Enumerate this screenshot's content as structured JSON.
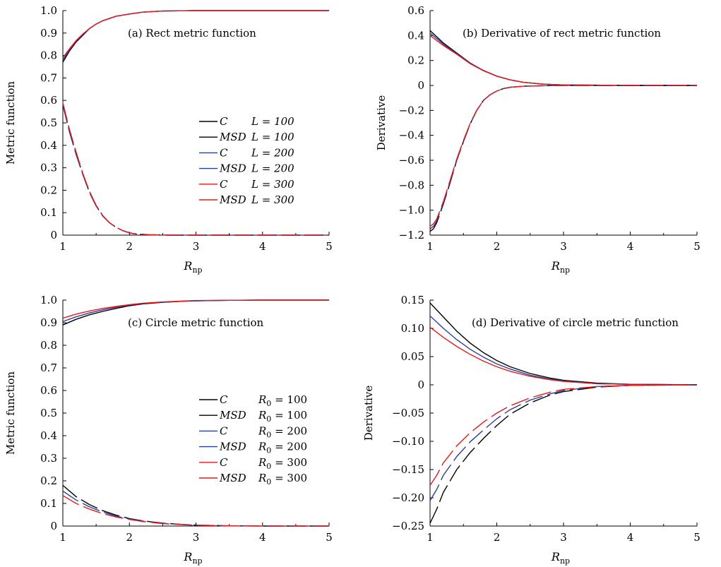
{
  "chart_data": [
    {
      "type": "line",
      "title": "(a) Rect metric function",
      "xlabel_main": "R",
      "xlabel_sub": "np",
      "ylabel": "Metric function",
      "xlim": [
        1,
        5
      ],
      "ylim": [
        0,
        1.0
      ],
      "xticks": [
        "1",
        "2",
        "3",
        "4",
        "5"
      ],
      "yticks": [
        "0",
        "0.1",
        "0.2",
        "0.3",
        "0.4",
        "0.5",
        "0.6",
        "0.7",
        "0.8",
        "0.9",
        "1.0"
      ],
      "grid": false,
      "legend_position": "center-right",
      "legend": [
        {
          "a": "C",
          "b": "L = 100",
          "color": "#000000"
        },
        {
          "a": "MSD",
          "b": "L = 100",
          "color": "#000000"
        },
        {
          "a": "C",
          "b": "L = 200",
          "color": "#2a3f9a"
        },
        {
          "a": "MSD",
          "b": "L = 200",
          "color": "#2a3f9a"
        },
        {
          "a": "C",
          "b": "L = 300",
          "color": "#e41a1c"
        },
        {
          "a": "MSD",
          "b": "L = 300",
          "color": "#e41a1c"
        }
      ],
      "series": [
        {
          "style": "solid",
          "color": "#000000",
          "x": [
            1,
            1.1,
            1.2,
            1.3,
            1.4,
            1.5,
            1.6,
            1.8,
            2,
            2.2,
            2.5,
            3,
            4,
            5
          ],
          "y": [
            0.77,
            0.82,
            0.86,
            0.89,
            0.92,
            0.94,
            0.955,
            0.975,
            0.985,
            0.993,
            0.998,
            1,
            1,
            1
          ]
        },
        {
          "style": "solid",
          "color": "#2a3f9a",
          "x": [
            1,
            1.1,
            1.2,
            1.3,
            1.4,
            1.5,
            1.6,
            1.8,
            2,
            2.2,
            2.5,
            3,
            4,
            5
          ],
          "y": [
            0.78,
            0.825,
            0.864,
            0.894,
            0.92,
            0.94,
            0.955,
            0.975,
            0.985,
            0.993,
            0.998,
            1,
            1,
            1
          ]
        },
        {
          "style": "solid",
          "color": "#e41a1c",
          "x": [
            1,
            1.1,
            1.2,
            1.3,
            1.4,
            1.5,
            1.6,
            1.8,
            2,
            2.2,
            2.5,
            3,
            4,
            5
          ],
          "y": [
            0.79,
            0.83,
            0.867,
            0.896,
            0.92,
            0.94,
            0.955,
            0.975,
            0.985,
            0.993,
            0.998,
            1,
            1,
            1
          ]
        },
        {
          "style": "dashed",
          "color": "#000000",
          "x": [
            1,
            1.1,
            1.2,
            1.3,
            1.4,
            1.5,
            1.6,
            1.7,
            1.8,
            1.9,
            2,
            2.1,
            2.3,
            2.6,
            3,
            4,
            5
          ],
          "y": [
            0.58,
            0.46,
            0.36,
            0.27,
            0.19,
            0.13,
            0.085,
            0.055,
            0.035,
            0.02,
            0.01,
            0.005,
            0.002,
            0,
            0,
            0,
            0
          ]
        },
        {
          "style": "dashed",
          "color": "#2a3f9a",
          "x": [
            1,
            1.1,
            1.2,
            1.3,
            1.4,
            1.5,
            1.6,
            1.7,
            1.8,
            1.9,
            2,
            2.1,
            2.3,
            2.6,
            3,
            4,
            5
          ],
          "y": [
            0.585,
            0.465,
            0.365,
            0.272,
            0.192,
            0.131,
            0.086,
            0.055,
            0.035,
            0.02,
            0.01,
            0.005,
            0.002,
            0,
            0,
            0,
            0
          ]
        },
        {
          "style": "dashed",
          "color": "#e41a1c",
          "x": [
            1,
            1.1,
            1.2,
            1.3,
            1.4,
            1.5,
            1.6,
            1.7,
            1.8,
            1.9,
            2,
            2.1,
            2.3,
            2.6,
            3,
            4,
            5
          ],
          "y": [
            0.59,
            0.47,
            0.37,
            0.275,
            0.195,
            0.133,
            0.087,
            0.056,
            0.035,
            0.02,
            0.01,
            0.005,
            0.002,
            0,
            0,
            0,
            0
          ]
        }
      ]
    },
    {
      "type": "line",
      "title": "(b) Derivative of rect metric function",
      "xlabel_main": "R",
      "xlabel_sub": "np",
      "ylabel": "Derivative",
      "xlim": [
        1,
        5
      ],
      "ylim": [
        -1.2,
        0.6
      ],
      "xticks": [
        "1",
        "2",
        "3",
        "4",
        "5"
      ],
      "yticks": [
        "−1.2",
        "−1.0",
        "−0.8",
        "−0.6",
        "−0.4",
        "−0.2",
        "0",
        "0.2",
        "0.4",
        "0.6"
      ],
      "grid": false,
      "series": [
        {
          "style": "solid",
          "color": "#000000",
          "x": [
            1,
            1.1,
            1.2,
            1.4,
            1.6,
            1.8,
            2,
            2.2,
            2.4,
            2.7,
            3,
            4,
            5
          ],
          "y": [
            0.44,
            0.39,
            0.34,
            0.26,
            0.18,
            0.12,
            0.075,
            0.045,
            0.025,
            0.01,
            0.004,
            0,
            0
          ]
        },
        {
          "style": "solid",
          "color": "#2a3f9a",
          "x": [
            1,
            1.1,
            1.2,
            1.4,
            1.6,
            1.8,
            2,
            2.2,
            2.4,
            2.7,
            3,
            4,
            5
          ],
          "y": [
            0.42,
            0.375,
            0.33,
            0.255,
            0.178,
            0.12,
            0.075,
            0.045,
            0.025,
            0.01,
            0.004,
            0,
            0
          ]
        },
        {
          "style": "solid",
          "color": "#e41a1c",
          "x": [
            1,
            1.1,
            1.2,
            1.4,
            1.6,
            1.8,
            2,
            2.2,
            2.4,
            2.7,
            3,
            4,
            5
          ],
          "y": [
            0.4,
            0.36,
            0.32,
            0.25,
            0.175,
            0.118,
            0.074,
            0.045,
            0.025,
            0.01,
            0.004,
            0,
            0
          ]
        },
        {
          "style": "dashed",
          "color": "#000000",
          "x": [
            1,
            1.05,
            1.1,
            1.2,
            1.3,
            1.4,
            1.5,
            1.6,
            1.7,
            1.8,
            1.9,
            2,
            2.1,
            2.2,
            2.4,
            2.7,
            3,
            4,
            5
          ],
          "y": [
            -1.17,
            -1.15,
            -1.1,
            -0.95,
            -0.78,
            -0.6,
            -0.45,
            -0.31,
            -0.2,
            -0.12,
            -0.075,
            -0.045,
            -0.025,
            -0.015,
            -0.006,
            -0.002,
            0,
            0,
            0
          ]
        },
        {
          "style": "dashed",
          "color": "#2a3f9a",
          "x": [
            1,
            1.05,
            1.1,
            1.2,
            1.3,
            1.4,
            1.5,
            1.6,
            1.7,
            1.8,
            1.9,
            2,
            2.1,
            2.2,
            2.4,
            2.7,
            3,
            4,
            5
          ],
          "y": [
            -1.15,
            -1.13,
            -1.085,
            -0.94,
            -0.77,
            -0.595,
            -0.445,
            -0.308,
            -0.2,
            -0.12,
            -0.075,
            -0.045,
            -0.025,
            -0.015,
            -0.006,
            -0.002,
            0,
            0,
            0
          ]
        },
        {
          "style": "dashed",
          "color": "#e41a1c",
          "x": [
            1,
            1.05,
            1.1,
            1.2,
            1.3,
            1.4,
            1.5,
            1.6,
            1.7,
            1.8,
            1.9,
            2,
            2.1,
            2.2,
            2.4,
            2.7,
            3,
            4,
            5
          ],
          "y": [
            -1.13,
            -1.11,
            -1.07,
            -0.93,
            -0.76,
            -0.59,
            -0.44,
            -0.305,
            -0.198,
            -0.12,
            -0.075,
            -0.045,
            -0.025,
            -0.015,
            -0.006,
            -0.002,
            0,
            0,
            0
          ]
        }
      ]
    },
    {
      "type": "line",
      "title": "(c) Circle metric function",
      "xlabel_main": "R",
      "xlabel_sub": "np",
      "ylabel": "Metric function",
      "xlim": [
        1,
        5
      ],
      "ylim": [
        0,
        1.0
      ],
      "xticks": [
        "1",
        "2",
        "3",
        "4",
        "5"
      ],
      "yticks": [
        "0",
        "0.1",
        "0.2",
        "0.3",
        "0.4",
        "0.5",
        "0.6",
        "0.7",
        "0.8",
        "0.9",
        "1.0"
      ],
      "grid": false,
      "legend_position": "center-right",
      "legend": [
        {
          "a": "C",
          "b": "R",
          "sub": "0",
          "c": " = 100",
          "color": "#000000"
        },
        {
          "a": "MSD",
          "b": "R",
          "sub": "0",
          "c": " = 100",
          "color": "#000000"
        },
        {
          "a": "C",
          "b": "R",
          "sub": "0",
          "c": " = 200",
          "color": "#2a3f9a"
        },
        {
          "a": "MSD",
          "b": "R",
          "sub": "0",
          "c": " = 200",
          "color": "#2a3f9a"
        },
        {
          "a": "C",
          "b": "R",
          "sub": "0",
          "c": " = 300",
          "color": "#e41a1c"
        },
        {
          "a": "MSD",
          "b": "R",
          "sub": "0",
          "c": " = 300",
          "color": "#e41a1c"
        }
      ],
      "series": [
        {
          "style": "solid",
          "color": "#000000",
          "x": [
            1,
            1.2,
            1.4,
            1.6,
            1.8,
            2,
            2.2,
            2.5,
            2.8,
            3,
            3.5,
            4,
            5
          ],
          "y": [
            0.89,
            0.915,
            0.935,
            0.95,
            0.963,
            0.975,
            0.983,
            0.99,
            0.995,
            0.997,
            0.999,
            1,
            1
          ]
        },
        {
          "style": "solid",
          "color": "#2a3f9a",
          "x": [
            1,
            1.2,
            1.4,
            1.6,
            1.8,
            2,
            2.2,
            2.5,
            2.8,
            3,
            3.5,
            4,
            5
          ],
          "y": [
            0.905,
            0.926,
            0.943,
            0.957,
            0.968,
            0.978,
            0.985,
            0.991,
            0.995,
            0.997,
            0.999,
            1,
            1
          ]
        },
        {
          "style": "solid",
          "color": "#e41a1c",
          "x": [
            1,
            1.2,
            1.4,
            1.6,
            1.8,
            2,
            2.2,
            2.5,
            2.8,
            3,
            3.5,
            4,
            5
          ],
          "y": [
            0.92,
            0.938,
            0.952,
            0.963,
            0.972,
            0.98,
            0.986,
            0.992,
            0.996,
            0.998,
            0.999,
            1,
            1
          ]
        },
        {
          "style": "dashed",
          "color": "#000000",
          "x": [
            1,
            1.2,
            1.4,
            1.6,
            1.8,
            2,
            2.2,
            2.5,
            2.8,
            3,
            3.5,
            4,
            5
          ],
          "y": [
            0.18,
            0.13,
            0.095,
            0.068,
            0.048,
            0.033,
            0.023,
            0.013,
            0.007,
            0.004,
            0.001,
            0,
            0
          ]
        },
        {
          "style": "dashed",
          "color": "#2a3f9a",
          "x": [
            1,
            1.2,
            1.4,
            1.6,
            1.8,
            2,
            2.2,
            2.5,
            2.8,
            3,
            3.5,
            4,
            5
          ],
          "y": [
            0.155,
            0.115,
            0.085,
            0.062,
            0.044,
            0.031,
            0.022,
            0.012,
            0.007,
            0.004,
            0.001,
            0,
            0
          ]
        },
        {
          "style": "dashed",
          "color": "#e41a1c",
          "x": [
            1,
            1.2,
            1.4,
            1.6,
            1.8,
            2,
            2.2,
            2.5,
            2.8,
            3,
            3.5,
            4,
            5
          ],
          "y": [
            0.135,
            0.1,
            0.075,
            0.055,
            0.04,
            0.029,
            0.02,
            0.011,
            0.006,
            0.003,
            0.001,
            0,
            0
          ]
        }
      ]
    },
    {
      "type": "line",
      "title": "(d) Derivative of circle metric function",
      "xlabel_main": "R",
      "xlabel_sub": "np",
      "ylabel": "Derivative",
      "xlim": [
        1,
        5
      ],
      "ylim": [
        -0.25,
        0.15
      ],
      "xticks": [
        "1",
        "2",
        "3",
        "4",
        "5"
      ],
      "yticks": [
        "−0.25",
        "−0.20",
        "−0.15",
        "−0.10",
        "−0.05",
        "0",
        "0.05",
        "0.10",
        "0.15"
      ],
      "grid": false,
      "series": [
        {
          "style": "solid",
          "color": "#000000",
          "x": [
            1,
            1.2,
            1.4,
            1.6,
            1.8,
            2,
            2.2,
            2.5,
            2.8,
            3,
            3.5,
            4,
            5
          ],
          "y": [
            0.145,
            0.12,
            0.095,
            0.074,
            0.057,
            0.043,
            0.032,
            0.02,
            0.012,
            0.008,
            0.003,
            0.001,
            0
          ]
        },
        {
          "style": "solid",
          "color": "#2a3f9a",
          "x": [
            1,
            1.2,
            1.4,
            1.6,
            1.8,
            2,
            2.2,
            2.5,
            2.8,
            3,
            3.5,
            4,
            5
          ],
          "y": [
            0.122,
            0.1,
            0.08,
            0.063,
            0.049,
            0.037,
            0.028,
            0.017,
            0.01,
            0.007,
            0.002,
            0.001,
            0
          ]
        },
        {
          "style": "solid",
          "color": "#e41a1c",
          "x": [
            1,
            1.2,
            1.4,
            1.6,
            1.8,
            2,
            2.2,
            2.5,
            2.8,
            3,
            3.5,
            4,
            5
          ],
          "y": [
            0.102,
            0.084,
            0.068,
            0.054,
            0.042,
            0.032,
            0.024,
            0.015,
            0.009,
            0.006,
            0.002,
            0.001,
            0
          ]
        },
        {
          "style": "dashed",
          "color": "#000000",
          "x": [
            1,
            1.1,
            1.2,
            1.4,
            1.6,
            1.8,
            2,
            2.2,
            2.5,
            2.8,
            3,
            3.5,
            4,
            5
          ],
          "y": [
            -0.245,
            -0.22,
            -0.19,
            -0.15,
            -0.12,
            -0.095,
            -0.072,
            -0.052,
            -0.032,
            -0.018,
            -0.012,
            -0.004,
            -0.001,
            0
          ]
        },
        {
          "style": "dashed",
          "color": "#2a3f9a",
          "x": [
            1,
            1.1,
            1.2,
            1.4,
            1.6,
            1.8,
            2,
            2.2,
            2.5,
            2.8,
            3,
            3.5,
            4,
            5
          ],
          "y": [
            -0.205,
            -0.185,
            -0.16,
            -0.127,
            -0.101,
            -0.08,
            -0.06,
            -0.044,
            -0.027,
            -0.016,
            -0.01,
            -0.003,
            -0.001,
            0
          ]
        },
        {
          "style": "dashed",
          "color": "#e41a1c",
          "x": [
            1,
            1.1,
            1.2,
            1.4,
            1.6,
            1.8,
            2,
            2.2,
            2.5,
            2.8,
            3,
            3.5,
            4,
            5
          ],
          "y": [
            -0.178,
            -0.16,
            -0.138,
            -0.108,
            -0.085,
            -0.066,
            -0.05,
            -0.037,
            -0.023,
            -0.013,
            -0.008,
            -0.003,
            -0.001,
            0
          ]
        }
      ]
    }
  ]
}
